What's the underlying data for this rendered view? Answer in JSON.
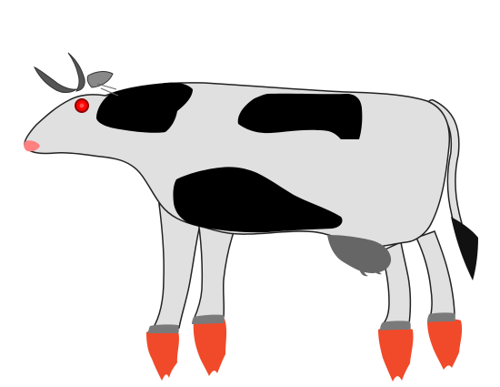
{
  "scene": {
    "subject": "cow-with-flaming-hooves",
    "colors": {
      "background": "#ffffff",
      "body": "#e0e0e0",
      "outline": "#222222",
      "spots": "#000000",
      "horn": "#555555",
      "ear": "#888888",
      "eye": "#ff0000",
      "nose": "#ff8080",
      "udder": "#666666",
      "hoof": "#7a7a7a",
      "flame": "#f04a2a",
      "tail_tip": "#111111"
    }
  }
}
